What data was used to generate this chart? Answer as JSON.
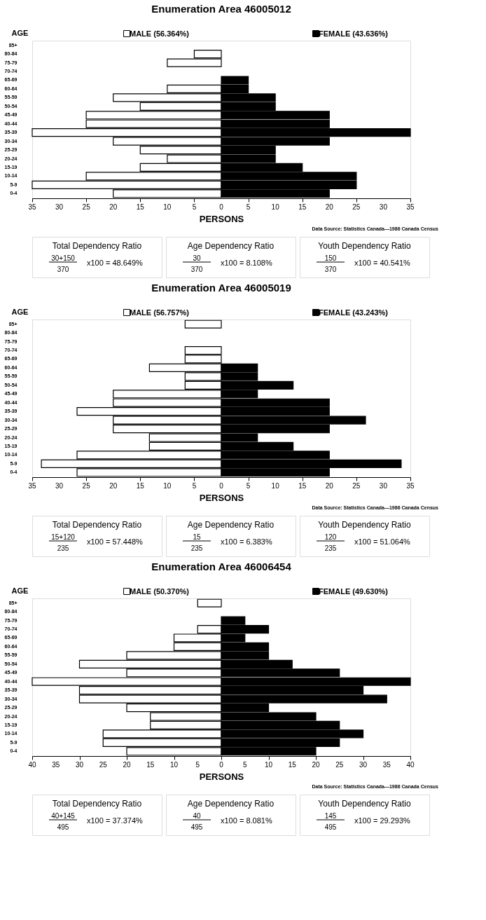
{
  "chart_data": [
    {
      "type": "bar",
      "orientation": "horizontal",
      "stacked": true,
      "legend": "top",
      "title": "Enumeration Area 46005012",
      "xlabel": "PERSONS",
      "ylabel": "AGE",
      "grid": false,
      "categories": [
        "85+",
        "80-84",
        "75-79",
        "70-74",
        "65-69",
        "60-64",
        "55-59",
        "50-54",
        "45-49",
        "40-44",
        "35-39",
        "30-34",
        "25-29",
        "20-24",
        "15-19",
        "10-14",
        "5-9",
        "0-4"
      ],
      "series": [
        {
          "name": "MALE (56.364%)",
          "color": "#ffffff",
          "values": [
            0,
            -5,
            -10,
            0,
            0,
            -10,
            -20,
            -15,
            -25,
            -25,
            -35,
            -20,
            -15,
            -10,
            -15,
            -25,
            -35,
            -20
          ]
        },
        {
          "name": "FEMALE (43.636%)",
          "color": "#000000",
          "values": [
            0,
            0,
            0,
            0,
            5,
            5,
            10,
            10,
            20,
            20,
            35,
            20,
            10,
            10,
            15,
            25,
            25,
            20
          ]
        }
      ],
      "xlim": [
        -35,
        35
      ],
      "xticks": [
        {
          "value": -35,
          "label": "35"
        },
        {
          "value": -30,
          "label": "30"
        },
        {
          "value": -25,
          "label": "25"
        },
        {
          "value": -20,
          "label": "20"
        },
        {
          "value": -15,
          "label": "15"
        },
        {
          "value": -10,
          "label": "10"
        },
        {
          "value": -5,
          "label": "5"
        },
        0,
        5,
        10,
        15,
        20,
        25,
        30,
        35
      ],
      "annotations": [
        "Data Source: Statistics Canada—1986 Canada Census",
        "Total Dependency Ratio",
        "30+150",
        "370",
        "x100 = 48.649%",
        "Age Dependency Ratio",
        "30",
        "370",
        "x100 = 8.108%",
        "Youth Dependency Ratio",
        "150",
        "370",
        "x100 = 40.541%"
      ]
    },
    {
      "type": "bar",
      "orientation": "horizontal",
      "stacked": true,
      "legend": "top",
      "title": "Enumeration Area 46005019",
      "xlabel": "PERSONS",
      "ylabel": "AGE",
      "grid": false,
      "categories": [
        "85+",
        "80-84",
        "75-79",
        "70-74",
        "65-69",
        "60-64",
        "55-59",
        "50-54",
        "45-49",
        "40-44",
        "35-39",
        "30-34",
        "25-29",
        "20-24",
        "15-19",
        "10-14",
        "5-9",
        "0-4"
      ],
      "series": [
        {
          "name": "MALE (56.757%)",
          "color": "#ffffff",
          "values": [
            -6.7,
            0,
            0,
            -6.7,
            -6.7,
            -13.3,
            -6.7,
            -6.7,
            -20,
            -20,
            -26.7,
            -20,
            -20,
            -13.3,
            -13.3,
            -26.7,
            -33.3,
            -26.7
          ]
        },
        {
          "name": "FEMALE (43.243%)",
          "color": "#000000",
          "values": [
            0,
            0,
            0,
            0,
            0,
            6.7,
            6.7,
            13.3,
            6.7,
            20,
            20,
            26.7,
            20,
            6.7,
            13.3,
            20,
            33.3,
            20
          ]
        }
      ],
      "xlim": [
        -35,
        35
      ],
      "xticks": [
        {
          "value": -35,
          "label": "35"
        },
        {
          "value": -30,
          "label": "30"
        },
        {
          "value": -25,
          "label": "25"
        },
        {
          "value": -20,
          "label": "20"
        },
        {
          "value": -15,
          "label": "15"
        },
        {
          "value": -10,
          "label": "10"
        },
        {
          "value": -5,
          "label": "5"
        },
        0,
        5,
        10,
        15,
        20,
        25,
        30,
        35
      ],
      "annotations": [
        "Data Source: Statistics Canada—1986 Canada Census",
        "Total Dependency Ratio",
        "15+120",
        "235",
        "x100 = 57.448%",
        "Age Dependency Ratio",
        "15",
        "235",
        "x100 = 6.383%",
        "Youth Dependency Ratio",
        "120",
        "235",
        "x100 = 51.064%"
      ]
    },
    {
      "type": "bar",
      "orientation": "horizontal",
      "stacked": true,
      "legend": "top",
      "title": "Enumeration Area 46006454",
      "xlabel": "PERSONS",
      "ylabel": "AGE",
      "grid": false,
      "categories": [
        "85+",
        "80-84",
        "75-79",
        "70-74",
        "65-69",
        "60-64",
        "55-59",
        "50-54",
        "45-49",
        "40-44",
        "35-39",
        "30-34",
        "25-29",
        "20-24",
        "15-19",
        "10-14",
        "5-9",
        "0-4"
      ],
      "series": [
        {
          "name": "MALE (50.370%)",
          "color": "#ffffff",
          "values": [
            -5,
            0,
            0,
            -5,
            -10,
            -10,
            -20,
            -30,
            -20,
            -40,
            -30,
            -30,
            -20,
            -15,
            -15,
            -25,
            -25,
            -20
          ]
        },
        {
          "name": "FEMALE (49.630%)",
          "color": "#000000",
          "values": [
            0,
            0,
            5,
            10,
            5,
            10,
            10,
            15,
            25,
            40,
            30,
            35,
            10,
            20,
            25,
            30,
            25,
            20
          ]
        }
      ],
      "xlim": [
        -40,
        40
      ],
      "xticks": [
        {
          "value": -40,
          "label": "40"
        },
        {
          "value": -35,
          "label": "35"
        },
        {
          "value": -30,
          "label": "30"
        },
        {
          "value": -25,
          "label": "25"
        },
        {
          "value": -20,
          "label": "20"
        },
        {
          "value": -15,
          "label": "15"
        },
        {
          "value": -10,
          "label": "10"
        },
        {
          "value": -5,
          "label": "5"
        },
        0,
        5,
        10,
        15,
        20,
        25,
        30,
        35,
        40
      ],
      "annotations": [
        "Data Source: Statistics Canada—1986 Canada Census",
        "Total Dependency Ratio",
        "40+145",
        "495",
        "x100 = 37.374%",
        "Age Dependency Ratio",
        "40",
        "495",
        "x100 = 8.081%",
        "Youth Dependency Ratio",
        "145",
        "495",
        "x100 = 29.293%"
      ]
    }
  ]
}
